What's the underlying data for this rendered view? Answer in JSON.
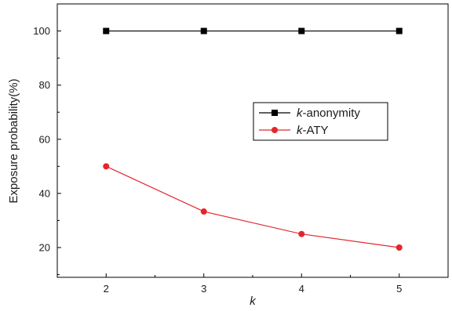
{
  "chart_data": {
    "type": "line",
    "x": [
      2,
      3,
      4,
      5
    ],
    "x_tick_labels": [
      "2",
      "3",
      "4",
      "5"
    ],
    "y_tick_labels": [
      "20",
      "40",
      "60",
      "80",
      "100"
    ],
    "xlabel": "k",
    "ylabel": "Exposure probability(%)",
    "xlim": [
      1.5,
      5.5
    ],
    "ylim": [
      9,
      110
    ],
    "grid": false,
    "legend_position": "center-right",
    "series": [
      {
        "name_italic": "k",
        "name_rest": "-anonymity",
        "color": "#000000",
        "marker": "square",
        "values": [
          100,
          100,
          100,
          100
        ]
      },
      {
        "name_italic": "k",
        "name_rest": "-ATY",
        "color": "#e3262b",
        "marker": "circle",
        "values": [
          50,
          33.3,
          25,
          20
        ]
      }
    ]
  }
}
